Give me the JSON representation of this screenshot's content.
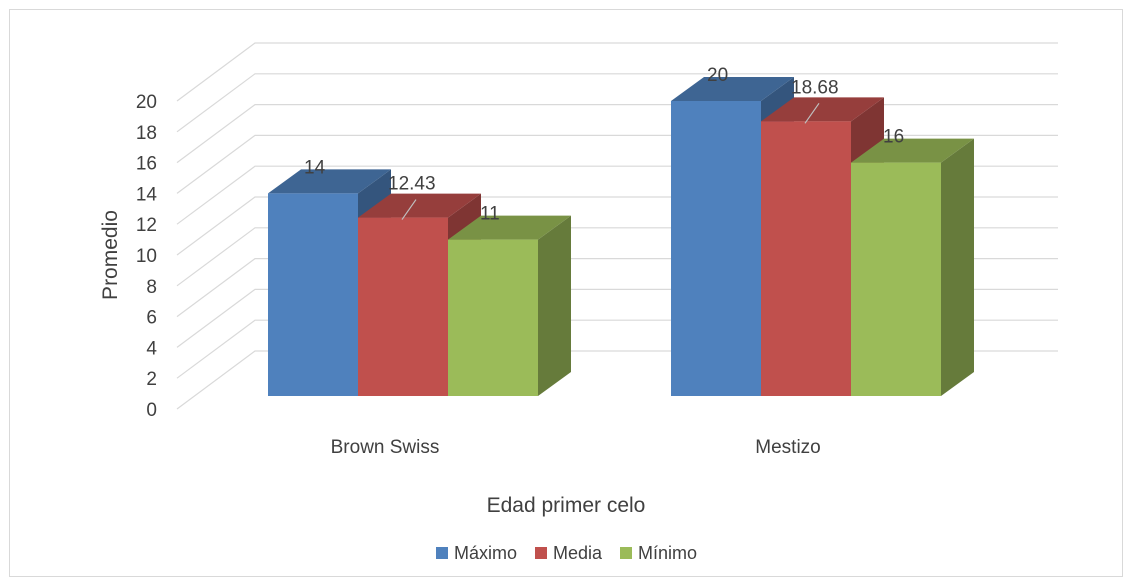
{
  "chart_data": {
    "type": "bar",
    "subtype": "3d-clustered-column",
    "categories": [
      "Brown Swiss",
      "Mestizo"
    ],
    "series": [
      {
        "name": "Máximo",
        "values": [
          14,
          20
        ],
        "labels": [
          "14",
          "20"
        ],
        "color": "#4f81bd"
      },
      {
        "name": "Media",
        "values": [
          12.43,
          18.68
        ],
        "labels": [
          "12.43",
          "18.68"
        ],
        "color": "#c0504d"
      },
      {
        "name": "Mínimo",
        "values": [
          11,
          16
        ],
        "labels": [
          "11",
          "16"
        ],
        "color": "#9bbb59"
      }
    ],
    "yticks": [
      "0",
      "2",
      "4",
      "6",
      "8",
      "10",
      "12",
      "14",
      "16",
      "18",
      "20"
    ],
    "ylim": [
      0,
      20
    ],
    "xlabel": "Edad primer celo",
    "ylabel": "Promedio",
    "grid": true,
    "legend_position": "bottom"
  }
}
